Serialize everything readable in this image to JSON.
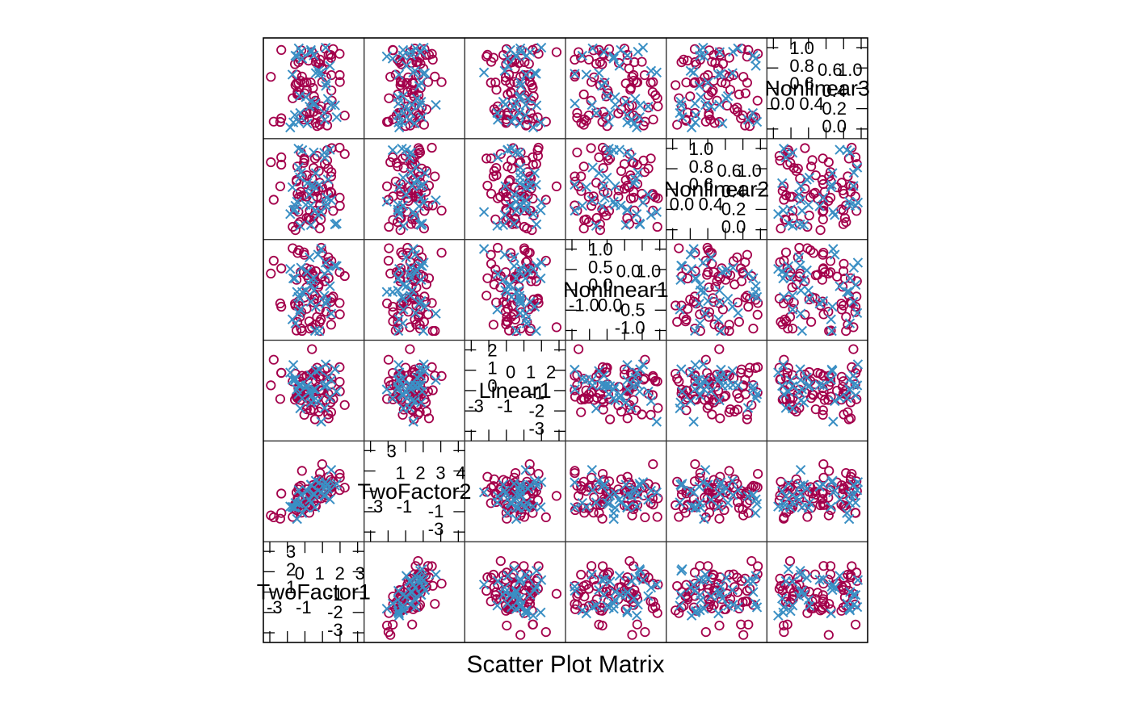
{
  "chart_data": {
    "type": "scatter",
    "title": "",
    "xlabel": "Scatter Plot Matrix",
    "ylabel": "",
    "variables": [
      "TwoFactor1",
      "TwoFactor2",
      "Linear1",
      "Nonlinear1",
      "Nonlinear2",
      "Nonlinear3"
    ],
    "diagonal": [
      {
        "label": "TwoFactor1",
        "ticks_low": [
          "-3",
          "-1"
        ],
        "ticks_low_right": [
          "-1",
          "-2",
          "-3"
        ],
        "ticks_high": [
          "0",
          "1",
          "2",
          "3"
        ],
        "ticks_high_left": [
          "3",
          "2",
          "1"
        ]
      },
      {
        "label": "TwoFactor2",
        "ticks_low": [
          "-3",
          "-1"
        ],
        "ticks_low_right": [
          "-1",
          "-3"
        ],
        "ticks_high": [
          "1",
          "2",
          "3",
          "4"
        ],
        "ticks_high_left": [
          "3"
        ]
      },
      {
        "label": "Linear1",
        "ticks_low": [
          "-3",
          "-1"
        ],
        "ticks_low_right": [
          "-1",
          "-2",
          "-3"
        ],
        "ticks_high": [
          "0",
          "1",
          "2"
        ],
        "ticks_high_left": [
          "2",
          "1",
          "0"
        ]
      },
      {
        "label": "Nonlinear1",
        "ticks_low": [
          "-1.0",
          "0.0"
        ],
        "ticks_low_right": [
          "-0.5",
          "-1.0"
        ],
        "ticks_high": [
          "0.0",
          "1.0"
        ],
        "ticks_high_left": [
          "1.0",
          "0.5",
          "0.0"
        ]
      },
      {
        "label": "Nonlinear2",
        "ticks_low": [
          "0.0",
          "0.4"
        ],
        "ticks_low_right": [
          "0.4",
          "0.2",
          "0.0"
        ],
        "ticks_high": [
          "0.6",
          "1.0"
        ],
        "ticks_high_left": [
          "1.0",
          "0.8",
          "0.6"
        ]
      },
      {
        "label": "Nonlinear3",
        "ticks_low": [
          "0.0",
          "0.4"
        ],
        "ticks_low_right": [
          "0.4",
          "0.2",
          "0.0"
        ],
        "ticks_high": [
          "0.6",
          "1.0"
        ],
        "ticks_high_left": [
          "1.0",
          "0.8",
          "0.6"
        ]
      }
    ],
    "groups": [
      {
        "marker": "circle",
        "color": "#A3004B"
      },
      {
        "marker": "cross",
        "color": "#3A8FC4"
      }
    ],
    "points": {
      "n_circle": 70,
      "n_cross": 35,
      "correlations": [
        {
          "pair": [
            "TwoFactor1",
            "TwoFactor2"
          ],
          "r": 0.6
        }
      ]
    },
    "grid": false,
    "legend": "none"
  }
}
